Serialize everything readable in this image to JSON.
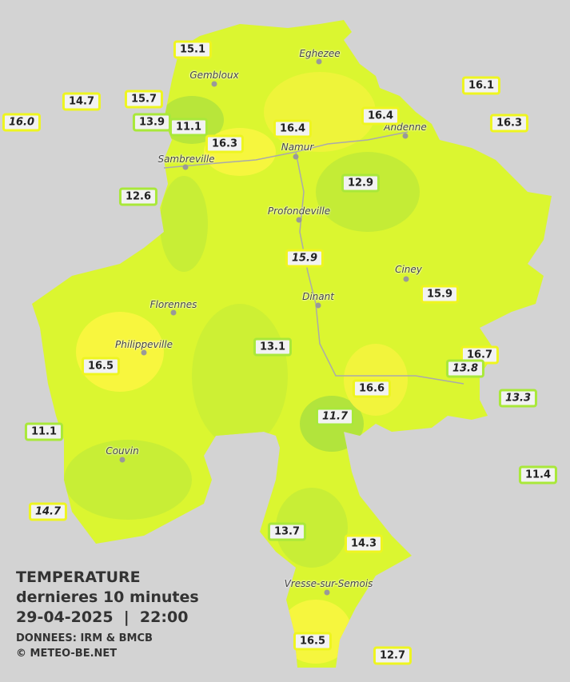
{
  "stations": [
    "15.1",
    "16.1",
    "14.7",
    "15.7",
    "16.0",
    "13.9",
    "11.1",
    "16.4",
    "16.3",
    "16.4",
    "16.3",
    "12.6",
    "12.9",
    "15.9",
    "15.9",
    "13.1",
    "16.5",
    "16.7",
    "13.8",
    "16.6",
    "13.3",
    "11.7",
    "11.1",
    "11.4",
    "14.7",
    "13.7",
    "14.3",
    "16.5",
    "12.7"
  ],
  "towns": [
    "Eghezee",
    "Gembloux",
    "Andenne",
    "Namur",
    "Sambreville",
    "Profondeville",
    "Ciney",
    "Dinant",
    "Florennes",
    "Philippeville",
    "Couvin",
    "Vresse-sur-Semois"
  ],
  "legend": {
    "title": "TEMPERATURE",
    "subtitle": "dernieres 10 minutes",
    "datetime": "29-04-2025  |  22:00",
    "source": "DONNEES: IRM & BMCB",
    "copyright": "© METEO-BE.NET"
  }
}
